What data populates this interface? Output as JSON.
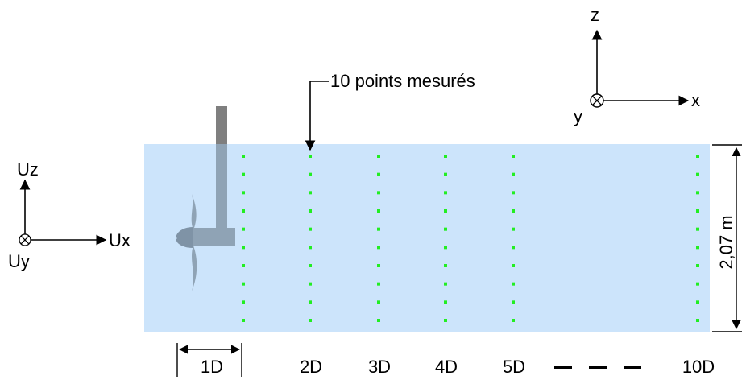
{
  "annotation": {
    "points_label": "10 points mesurés"
  },
  "axes_global": {
    "z_label": "z",
    "x_label": "x",
    "y_label": "y"
  },
  "axes_velocity": {
    "uz_label": "Uz",
    "ux_label": "Ux",
    "uy_label": "Uy"
  },
  "height_label": "2,07 m",
  "stations": [
    "1D",
    "2D",
    "3D",
    "4D",
    "5D",
    "10D"
  ],
  "measure_points_per_station": 10,
  "colors": {
    "water": "#cce4fb",
    "points": "#22ee22",
    "turbine": "#8fa3b5",
    "mast_top": "#7f7f7f"
  }
}
